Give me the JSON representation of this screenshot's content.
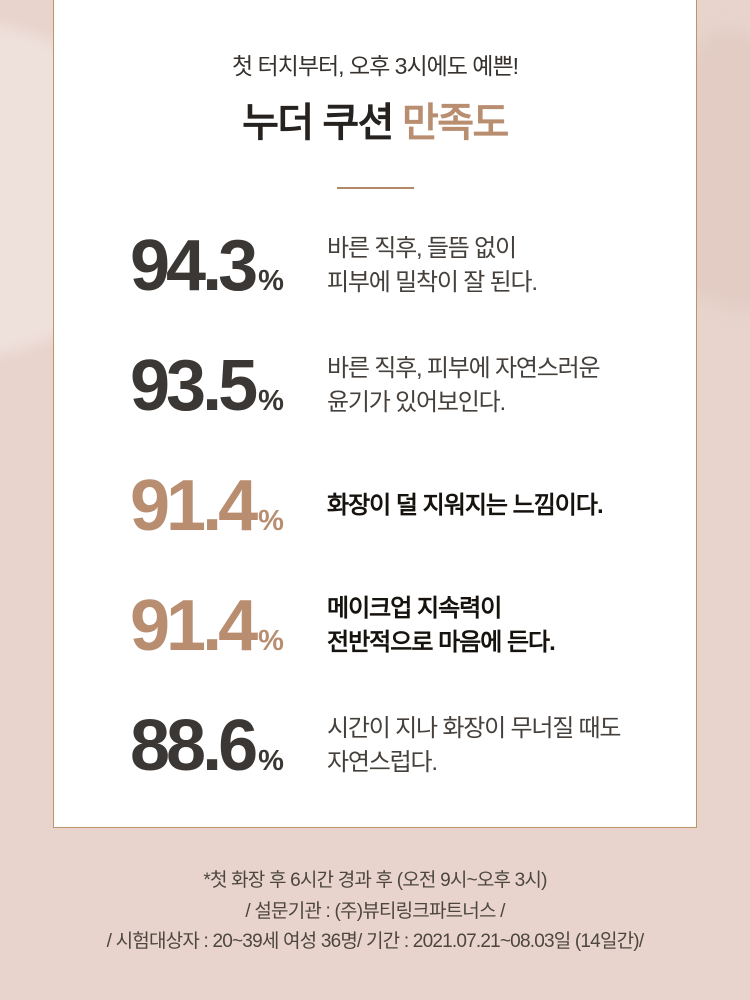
{
  "colors": {
    "background": "#e8d4cd",
    "card_background": "#ffffff",
    "card_border": "#bf9468",
    "accent": "#b98e70",
    "number_dark": "#3a3734",
    "text_dark": "#45403c",
    "text_bold": "#16130f",
    "footer_text": "#4c463f"
  },
  "header": {
    "subtitle": "첫 터치부터, 오후 3시에도 예쁜!",
    "title_main": "누더 쿠션",
    "title_accent": "만족도"
  },
  "stats": [
    {
      "value": "94.3",
      "unit": "%",
      "highlight": false,
      "bold": false,
      "lines": [
        "바른 직후, 들뜸 없이",
        "피부에 밀착이 잘 된다."
      ]
    },
    {
      "value": "93.5",
      "unit": "%",
      "highlight": false,
      "bold": false,
      "lines": [
        "바른 직후, 피부에 자연스러운",
        "윤기가 있어보인다."
      ]
    },
    {
      "value": "91.4",
      "unit": "%",
      "highlight": true,
      "bold": true,
      "lines": [
        "화장이 덜 지워지는 느낌이다."
      ]
    },
    {
      "value": "91.4",
      "unit": "%",
      "highlight": true,
      "bold": true,
      "lines": [
        "메이크업 지속력이",
        "전반적으로 마음에 든다."
      ]
    },
    {
      "value": "88.6",
      "unit": "%",
      "highlight": false,
      "bold": false,
      "lines": [
        "시간이 지나 화장이 무너질 때도",
        "자연스럽다."
      ]
    }
  ],
  "footer": {
    "lines": [
      "*첫 화장 후 6시간 경과 후 (오전 9시~오후 3시)",
      "/ 설문기관 : (주)뷰티링크파트너스 /",
      "/ 시험대상자 : 20~39세 여성 36명/ 기간 : 2021.07.21~08.03일 (14일간)/"
    ]
  },
  "chart_data": {
    "type": "table",
    "title": "누더 쿠션 만족도",
    "subtitle": "첫 터치부터, 오후 3시에도 예쁜!",
    "unit": "%",
    "categories": [
      "바른 직후, 들뜸 없이 피부에 밀착이 잘 된다.",
      "바른 직후, 피부에 자연스러운 윤기가 있어보인다.",
      "화장이 덜 지워지는 느낌이다.",
      "메이크업 지속력이 전반적으로 마음에 든다.",
      "시간이 지나 화장이 무너질 때도 자연스럽다."
    ],
    "values": [
      94.3,
      93.5,
      91.4,
      91.4,
      88.6
    ],
    "highlighted_indices": [
      2,
      3
    ],
    "highlight_color": "#b98e70",
    "footnotes": [
      "*첫 화장 후 6시간 경과 후 (오전 9시~오후 3시)",
      "/ 설문기관 : (주)뷰티링크파트너스 /",
      "/ 시험대상자 : 20~39세 여성 36명/ 기간 : 2021.07.21~08.03일 (14일간)/"
    ]
  }
}
